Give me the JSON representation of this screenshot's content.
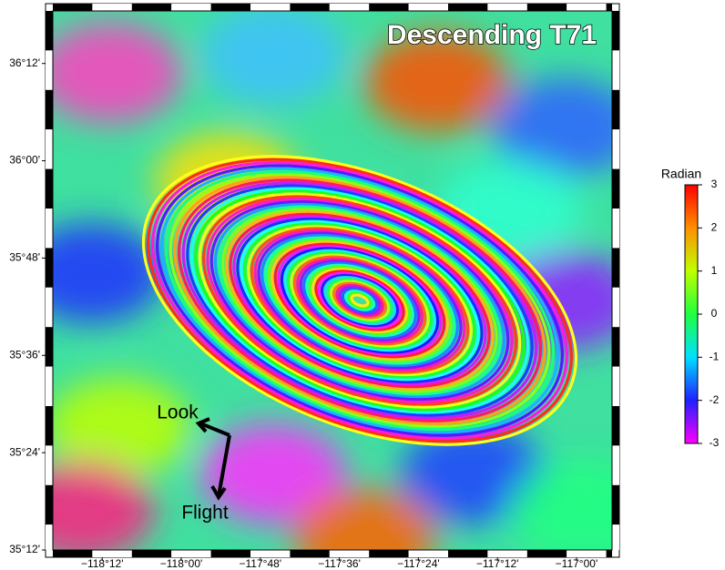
{
  "map": {
    "title": "Descending T71",
    "xlim": [
      -118.325,
      -116.91
    ],
    "ylim": [
      35.2,
      36.308
    ],
    "xticks": [
      {
        "value": -118.2,
        "label": "−118°12'"
      },
      {
        "value": -118.0,
        "label": "−118°00'"
      },
      {
        "value": -117.8,
        "label": "−117°48'"
      },
      {
        "value": -117.6,
        "label": "−117°36'"
      },
      {
        "value": -117.4,
        "label": "−117°24'"
      },
      {
        "value": -117.2,
        "label": "−117°12'"
      },
      {
        "value": -117.0,
        "label": "−117°00'"
      }
    ],
    "yticks": [
      {
        "value": 36.2,
        "label": "36°12'"
      },
      {
        "value": 36.0,
        "label": "36°00'"
      },
      {
        "value": 35.8,
        "label": "35°48'"
      },
      {
        "value": 35.6,
        "label": "35°36'"
      },
      {
        "value": 35.4,
        "label": "35°24'"
      },
      {
        "value": 35.2,
        "label": "35°12'"
      }
    ],
    "annotations": [
      "Look",
      "Flight"
    ]
  },
  "colorbar": {
    "label": "Radian",
    "lim": [
      -3,
      3
    ],
    "ticks": [
      3,
      2,
      1,
      0,
      -1,
      -2,
      -3
    ],
    "colors": [
      "#ff00ff",
      "#2020ff",
      "#00e0ff",
      "#20ff40",
      "#c0ff00",
      "#ff9000",
      "#ff0000"
    ]
  }
}
